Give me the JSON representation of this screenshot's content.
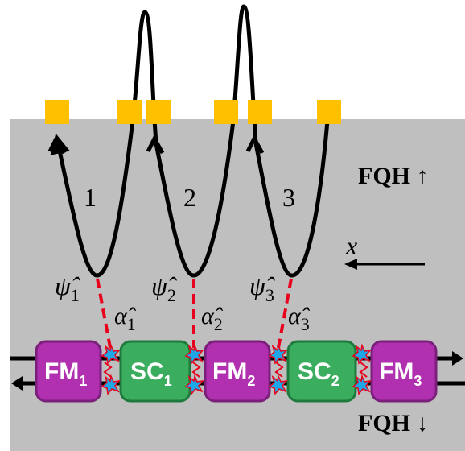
{
  "regions": {
    "top": "FQH ↑",
    "bottom": "FQH ↓"
  },
  "axis": "x",
  "edges": [
    {
      "label": "1",
      "mode": {
        "base": "ψ̂",
        "sub": "1"
      },
      "coupling": {
        "base": "α̂",
        "sub": "1"
      }
    },
    {
      "label": "2",
      "mode": {
        "base": "ψ̂",
        "sub": "2"
      },
      "coupling": {
        "base": "α̂",
        "sub": "2"
      }
    },
    {
      "label": "3",
      "mode": {
        "base": "ψ̂",
        "sub": "3"
      },
      "coupling": {
        "base": "α̂",
        "sub": "3"
      }
    }
  ],
  "segments": [
    {
      "base": "FM",
      "sub": "1"
    },
    {
      "base": "SC",
      "sub": "1"
    },
    {
      "base": "FM",
      "sub": "2"
    },
    {
      "base": "SC",
      "sub": "2"
    },
    {
      "base": "FM",
      "sub": "3"
    }
  ]
}
